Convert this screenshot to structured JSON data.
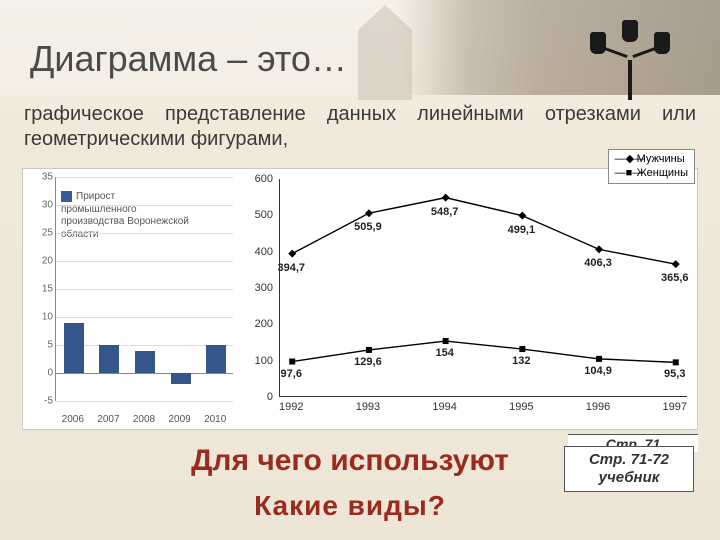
{
  "title": "Диаграмма – это…",
  "body_text": "графическое представление данных линейными отрезками или геометрическими фигурами,",
  "bar_chart": {
    "type": "bar",
    "legend": "Прирост промышленного производства Воронежской области",
    "years": [
      "2006",
      "2007",
      "2008",
      "2009",
      "2010"
    ],
    "values": [
      9,
      5,
      4,
      -2,
      5
    ],
    "ymin": -5,
    "ymax": 35,
    "ytick_step": 5,
    "bar_color": "#34568b",
    "grid_color": "#dddddd",
    "axis_color": "#888888"
  },
  "line_chart": {
    "type": "line",
    "legend": [
      {
        "label": "Мужчины",
        "marker": "diamond"
      },
      {
        "label": "Женщины",
        "marker": "square"
      }
    ],
    "years": [
      "1992",
      "1993",
      "1994",
      "1995",
      "1996",
      "1997"
    ],
    "series_men": [
      394.7,
      505.9,
      548.7,
      499.1,
      406.3,
      365.6
    ],
    "series_women": [
      97.6,
      129.6,
      154,
      132,
      104.9,
      95.3
    ],
    "labels_men": [
      "394,7",
      "505,9",
      "548,7",
      "499,1",
      "406,3",
      "365,6"
    ],
    "labels_women": [
      "97,6",
      "129,6",
      "154",
      "132",
      "104,9",
      "95,3"
    ],
    "ymin": 0,
    "ymax": 600,
    "ytick_step": 100,
    "line_color": "#000000",
    "marker_color": "#000000",
    "label_fontsize": 11
  },
  "red_question_1": "Для чего используют",
  "red_question_2_overlay": "Какие виды?",
  "page_ref_back": "Стр. 71",
  "page_ref": "Стр. 71-72 учебник"
}
